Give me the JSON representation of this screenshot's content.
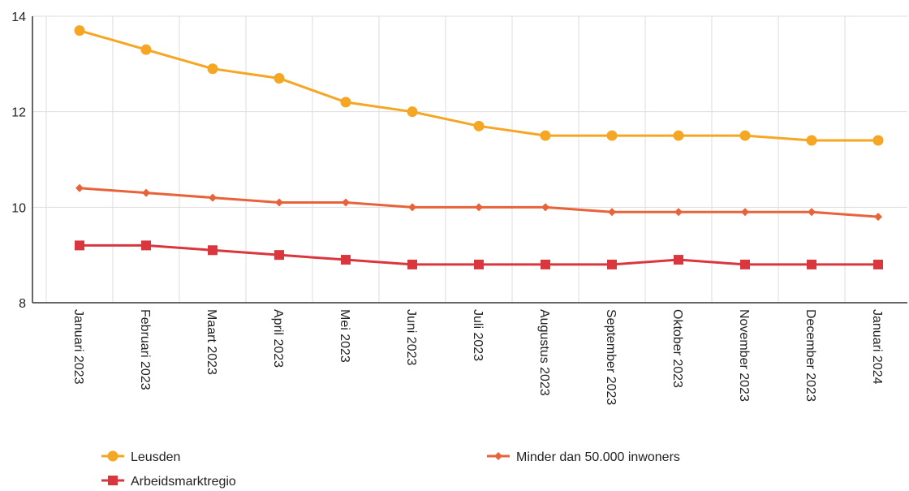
{
  "chart_data": {
    "type": "line",
    "categories": [
      "Januari 2023",
      "Februari 2023",
      "Maart 2023",
      "April 2023",
      "Mei 2023",
      "Juni 2023",
      "Juli 2023",
      "Augustus 2023",
      "September 2023",
      "Oktober 2023",
      "November 2023",
      "December 2023",
      "Januari 2024"
    ],
    "series": [
      {
        "name": "Leusden",
        "color": "#f5a623",
        "marker": "circle",
        "values": [
          13.7,
          13.3,
          12.9,
          12.7,
          12.2,
          12.0,
          11.7,
          11.5,
          11.5,
          11.5,
          11.5,
          11.4,
          11.4
        ]
      },
      {
        "name": "Minder dan 50.000 inwoners",
        "color": "#e8623a",
        "marker": "diamond",
        "values": [
          10.4,
          10.3,
          10.2,
          10.1,
          10.1,
          10.0,
          10.0,
          10.0,
          9.9,
          9.9,
          9.9,
          9.9,
          9.8
        ]
      },
      {
        "name": "Arbeidsmarktregio",
        "color": "#d9363e",
        "marker": "square",
        "values": [
          9.2,
          9.2,
          9.1,
          9.0,
          8.9,
          8.8,
          8.8,
          8.8,
          8.8,
          8.9,
          8.8,
          8.8,
          8.8
        ]
      }
    ],
    "ylim": [
      8,
      14
    ],
    "yticks": [
      8,
      10,
      12,
      14
    ],
    "grid": true
  }
}
